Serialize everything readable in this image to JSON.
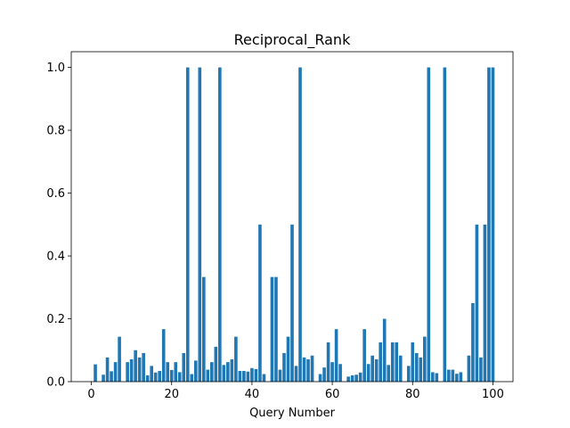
{
  "chart_data": {
    "type": "bar",
    "title": "Reciprocal_Rank",
    "xlabel": "Query Number",
    "ylabel": "",
    "xlim": [
      -5,
      105
    ],
    "ylim": [
      0,
      1.05
    ],
    "xticks": [
      0,
      20,
      40,
      60,
      80,
      100
    ],
    "yticks": [
      0.0,
      0.2,
      0.4,
      0.6,
      0.8,
      1.0
    ],
    "xtick_labels": [
      "0",
      "20",
      "40",
      "60",
      "80",
      "100"
    ],
    "ytick_labels": [
      "0.0",
      "0.2",
      "0.4",
      "0.6",
      "0.8",
      "1.0"
    ],
    "grid": false,
    "color": "#1f77b4",
    "bar_width": 0.8,
    "x": [
      0,
      1,
      2,
      3,
      4,
      5,
      6,
      7,
      8,
      9,
      10,
      11,
      12,
      13,
      14,
      15,
      16,
      17,
      18,
      19,
      20,
      21,
      22,
      23,
      24,
      25,
      26,
      27,
      28,
      29,
      30,
      31,
      32,
      33,
      34,
      35,
      36,
      37,
      38,
      39,
      40,
      41,
      42,
      43,
      44,
      45,
      46,
      47,
      48,
      49,
      50,
      51,
      52,
      53,
      54,
      55,
      56,
      57,
      58,
      59,
      60,
      61,
      62,
      63,
      64,
      65,
      66,
      67,
      68,
      69,
      70,
      71,
      72,
      73,
      74,
      75,
      76,
      77,
      78,
      79,
      80,
      81,
      82,
      83,
      84,
      85,
      86,
      87,
      88,
      89,
      90,
      91,
      92,
      93,
      94,
      95,
      96,
      97,
      98,
      99,
      100
    ],
    "values": [
      0,
      0.055,
      0,
      0.022,
      0.077,
      0.033,
      0.062,
      0.143,
      0,
      0.062,
      0.071,
      0.1,
      0.077,
      0.091,
      0.02,
      0.05,
      0.029,
      0.034,
      0.167,
      0.062,
      0.037,
      0.062,
      0.03,
      0.091,
      1.0,
      0.024,
      0.067,
      1.0,
      0.333,
      0.038,
      0.062,
      0.111,
      1.0,
      0.053,
      0.062,
      0.071,
      0.143,
      0.034,
      0.034,
      0.032,
      0.043,
      0.04,
      0.5,
      0.024,
      0,
      0.333,
      0.333,
      0.038,
      0.091,
      0.143,
      0.5,
      0.05,
      1.0,
      0.077,
      0.071,
      0.083,
      0,
      0.024,
      0.045,
      0.125,
      0.062,
      0.167,
      0.056,
      0,
      0.016,
      0.02,
      0.022,
      0.029,
      0.167,
      0.056,
      0.083,
      0.071,
      0.125,
      0.2,
      0.053,
      0.125,
      0.125,
      0.083,
      0,
      0.05,
      0.125,
      0.091,
      0.077,
      0.143,
      1.0,
      0.03,
      0.027,
      0,
      1.0,
      0.038,
      0.038,
      0.025,
      0.03,
      0,
      0.083,
      0.25,
      0.5,
      0.077,
      0.5,
      1.0,
      1.0
    ]
  }
}
